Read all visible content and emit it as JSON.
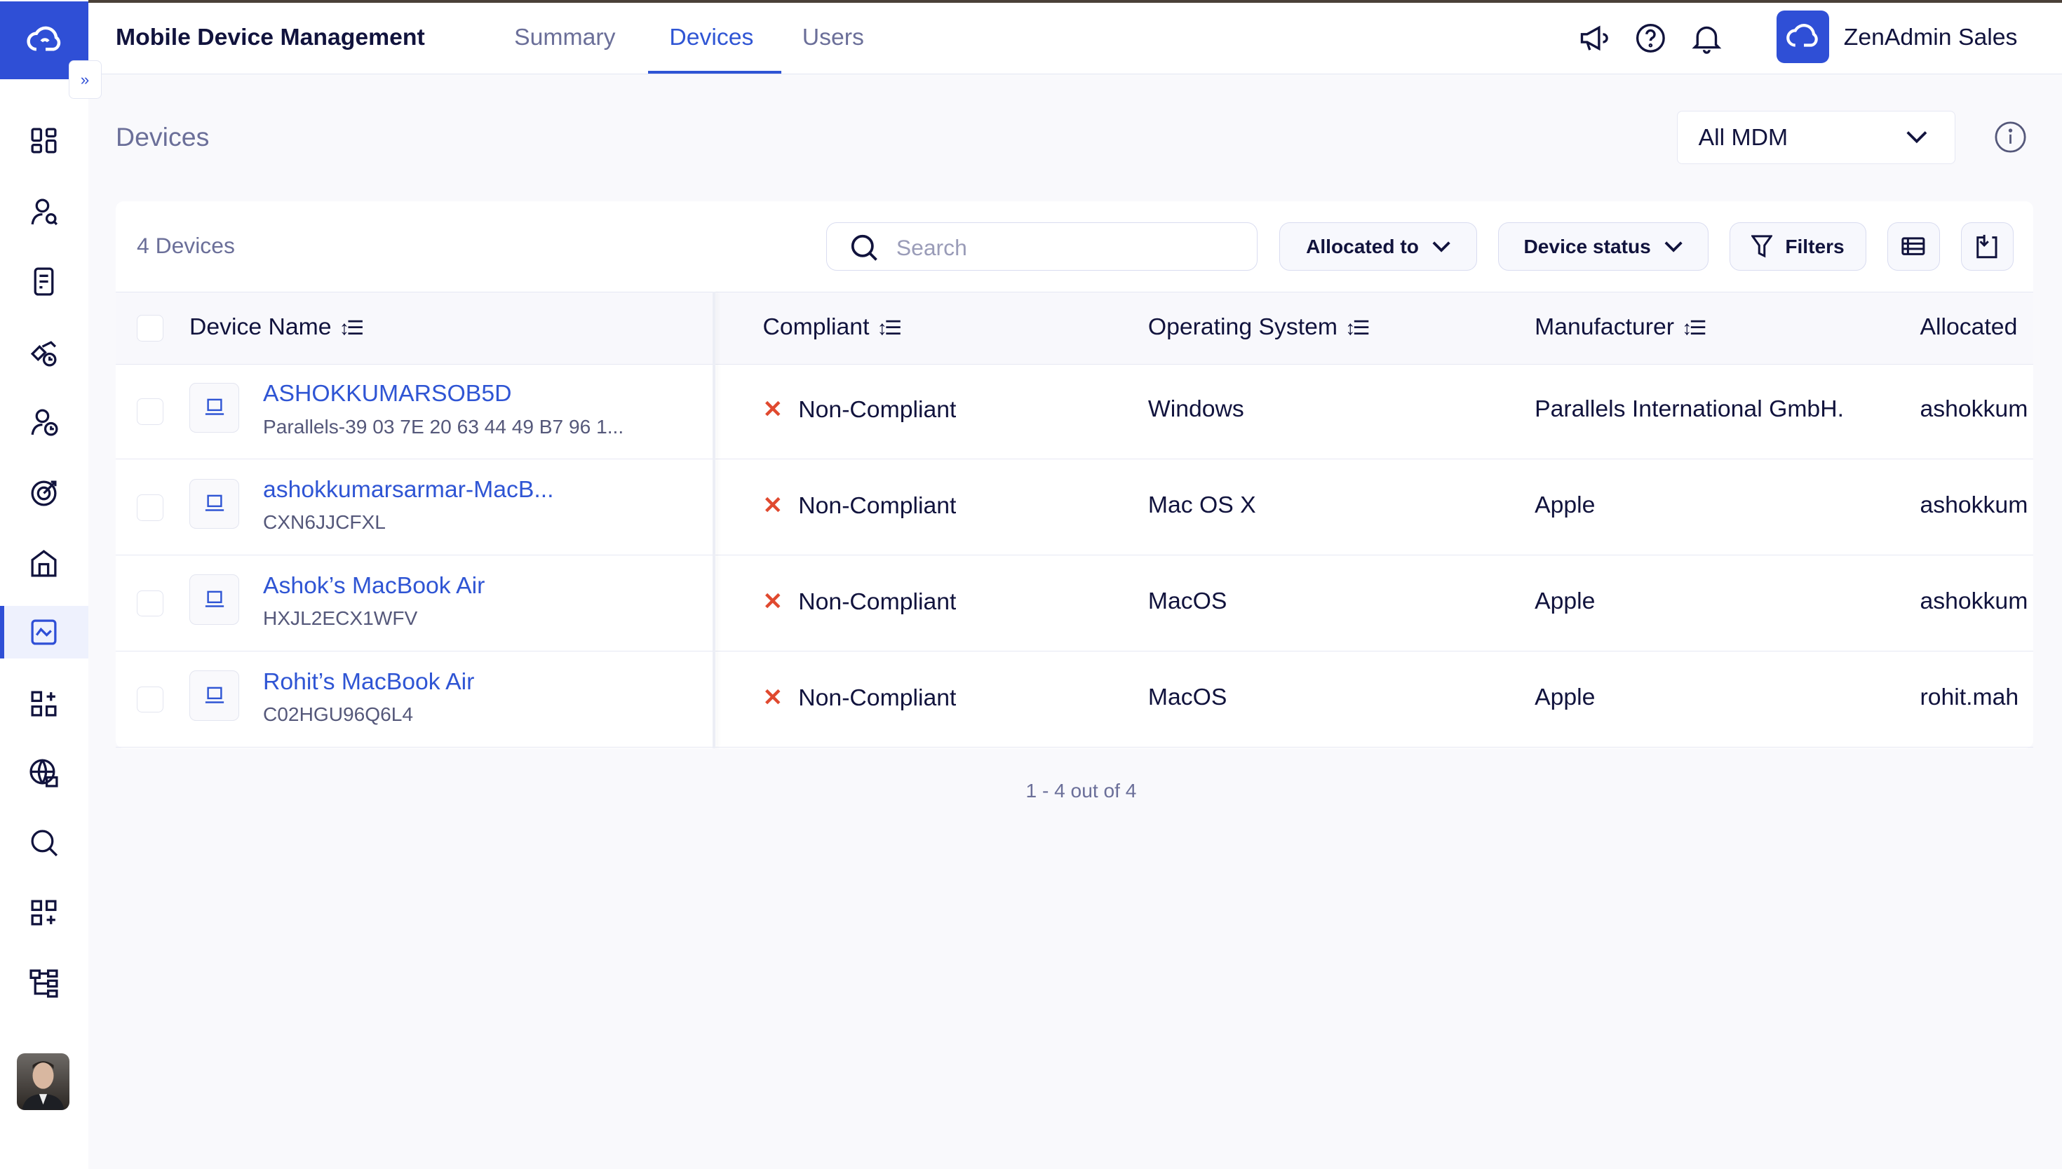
{
  "header": {
    "app_title": "Mobile Device Management",
    "tabs": [
      {
        "label": "Summary"
      },
      {
        "label": "Devices",
        "active": true
      },
      {
        "label": "Users"
      }
    ],
    "org_name": "ZenAdmin Sales"
  },
  "sidebar": {
    "expand_label": "»",
    "items": [
      "dashboard",
      "user-search",
      "document",
      "devices-clock",
      "user-clock",
      "target",
      "building",
      "mdm",
      "apps-add",
      "globe-lock",
      "search-chat",
      "widgets-add",
      "hierarchy"
    ],
    "active": "mdm"
  },
  "page": {
    "title": "Devices",
    "mdm_select": "All MDM"
  },
  "toolbar": {
    "count": "4 Devices",
    "search_placeholder": "Search",
    "allocated_to": "Allocated to",
    "device_status": "Device status",
    "filters": "Filters"
  },
  "table": {
    "columns": [
      "Device Name",
      "Compliant",
      "Operating System",
      "Manufacturer",
      "Allocated"
    ],
    "rows": [
      {
        "name": "ASHOKKUMARSOB5D",
        "serial": "Parallels-39 03 7E 20 63 44 49 B7 96 1...",
        "compliant": "Non-Compliant",
        "os": "Windows",
        "manufacturer": "Parallels International GmbH.",
        "allocated": "ashokkum"
      },
      {
        "name": "ashokkumarsarmar-MacB...",
        "serial": "CXN6JJCFXL",
        "compliant": "Non-Compliant",
        "os": "Mac OS X",
        "manufacturer": "Apple",
        "allocated": "ashokkum"
      },
      {
        "name": "Ashok’s MacBook Air",
        "serial": "HXJL2ECX1WFV",
        "compliant": "Non-Compliant",
        "os": "MacOS",
        "manufacturer": "Apple",
        "allocated": "ashokkum"
      },
      {
        "name": "Rohit’s MacBook Air",
        "serial": "C02HGU96Q6L4",
        "compliant": "Non-Compliant",
        "os": "MacOS",
        "manufacturer": "Apple",
        "allocated": "rohit.mah"
      }
    ]
  },
  "pagination": "1 - 4 out of 4",
  "colors": {
    "brand": "#2f4fd6",
    "link": "#2f55d4",
    "noncompliant": "#e0492f"
  }
}
